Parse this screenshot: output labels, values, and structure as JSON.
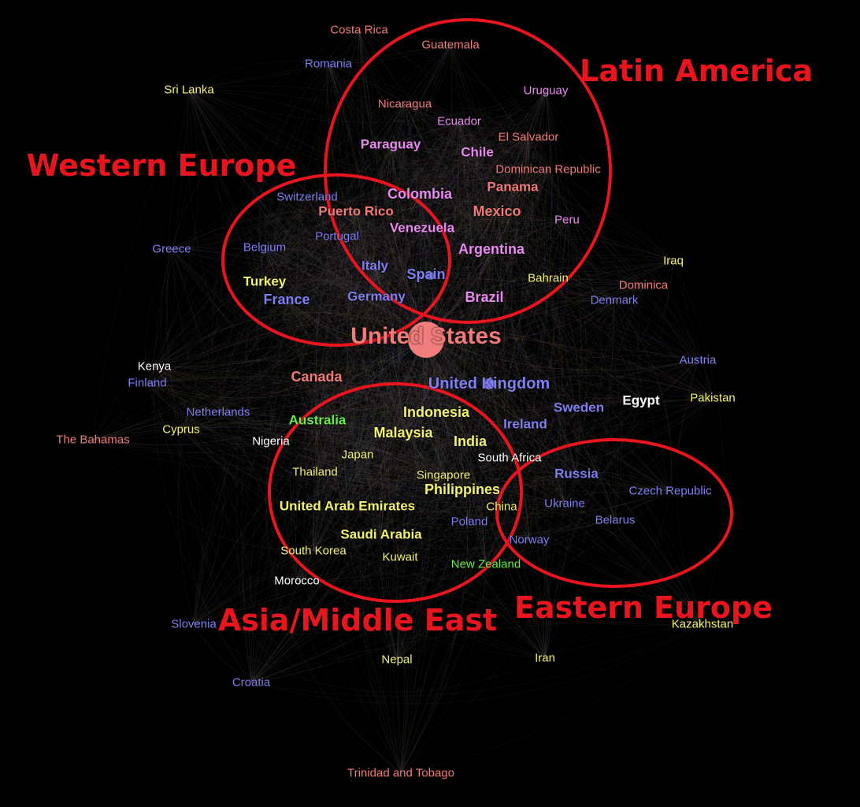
{
  "colors": {
    "background": "#000000",
    "region_outline": "#e8151f",
    "region_text": "#e8151f",
    "hub_dot": "#f27d7d",
    "edge_palette": [
      "#6e6a3a",
      "#5a4d80",
      "#7a4a55",
      "#4d5a80",
      "#6a6a40"
    ],
    "groups": {
      "salmon": "#f17b78",
      "violet": "#e98af0",
      "blue": "#7f7ff2",
      "yellow": "#f3f36e",
      "white": "#ffffff",
      "green": "#66ee44"
    }
  },
  "regions": [
    {
      "name": "latin-america",
      "label": "Latin America"
    },
    {
      "name": "western-europe",
      "label": "Western Europe"
    },
    {
      "name": "asia-middle-east",
      "label": "Asia/Middle East"
    },
    {
      "name": "eastern-europe",
      "label": "Eastern Europe"
    }
  ],
  "countries": [
    {
      "label": "Costa Rica",
      "group": "salmon",
      "weight": 1
    },
    {
      "label": "Guatemala",
      "group": "salmon",
      "weight": 1
    },
    {
      "label": "Romania",
      "group": "blue",
      "weight": 1
    },
    {
      "label": "Sri Lanka",
      "group": "yellow",
      "weight": 1
    },
    {
      "label": "Uruguay",
      "group": "violet",
      "weight": 1
    },
    {
      "label": "Nicaragua",
      "group": "salmon",
      "weight": 1
    },
    {
      "label": "Ecuador",
      "group": "violet",
      "weight": 1
    },
    {
      "label": "El Salvador",
      "group": "salmon",
      "weight": 1
    },
    {
      "label": "Paraguay",
      "group": "violet",
      "weight": 2
    },
    {
      "label": "Chile",
      "group": "violet",
      "weight": 2
    },
    {
      "label": "Dominican Republic",
      "group": "salmon",
      "weight": 1
    },
    {
      "label": "Switzerland",
      "group": "blue",
      "weight": 1
    },
    {
      "label": "Colombia",
      "group": "violet",
      "weight": 3
    },
    {
      "label": "Panama",
      "group": "salmon",
      "weight": 2
    },
    {
      "label": "Puerto Rico",
      "group": "salmon",
      "weight": 2
    },
    {
      "label": "Mexico",
      "group": "salmon",
      "weight": 3
    },
    {
      "label": "Peru",
      "group": "violet",
      "weight": 1
    },
    {
      "label": "Venezuela",
      "group": "violet",
      "weight": 2
    },
    {
      "label": "Portugal",
      "group": "blue",
      "weight": 1
    },
    {
      "label": "Greece",
      "group": "blue",
      "weight": 1
    },
    {
      "label": "Belgium",
      "group": "blue",
      "weight": 1
    },
    {
      "label": "Argentina",
      "group": "violet",
      "weight": 3
    },
    {
      "label": "Iraq",
      "group": "yellow",
      "weight": 1
    },
    {
      "label": "Italy",
      "group": "blue",
      "weight": 2
    },
    {
      "label": "Spain",
      "group": "blue",
      "weight": 3
    },
    {
      "label": "Turkey",
      "group": "yellow",
      "weight": 2
    },
    {
      "label": "Bahrain",
      "group": "yellow",
      "weight": 1
    },
    {
      "label": "Dominica",
      "group": "salmon",
      "weight": 1
    },
    {
      "label": "France",
      "group": "blue",
      "weight": 3
    },
    {
      "label": "Germany",
      "group": "blue",
      "weight": 2
    },
    {
      "label": "Brazil",
      "group": "violet",
      "weight": 3
    },
    {
      "label": "Denmark",
      "group": "blue",
      "weight": 1
    },
    {
      "label": "United States",
      "group": "salmon",
      "weight": 5
    },
    {
      "label": "Austria",
      "group": "blue",
      "weight": 1
    },
    {
      "label": "Kenya",
      "group": "white",
      "weight": 1
    },
    {
      "label": "Canada",
      "group": "salmon",
      "weight": 3
    },
    {
      "label": "United Kingdom",
      "group": "blue",
      "weight": 4
    },
    {
      "label": "Finland",
      "group": "blue",
      "weight": 1
    },
    {
      "label": "Egypt",
      "group": "white",
      "weight": 2
    },
    {
      "label": "Pakistan",
      "group": "yellow",
      "weight": 1
    },
    {
      "label": "Indonesia",
      "group": "yellow",
      "weight": 3
    },
    {
      "label": "Sweden",
      "group": "blue",
      "weight": 2
    },
    {
      "label": "Netherlands",
      "group": "blue",
      "weight": 1
    },
    {
      "label": "Australia",
      "group": "green",
      "weight": 2
    },
    {
      "label": "Ireland",
      "group": "blue",
      "weight": 2
    },
    {
      "label": "Cyprus",
      "group": "yellow",
      "weight": 1
    },
    {
      "label": "Malaysia",
      "group": "yellow",
      "weight": 3
    },
    {
      "label": "India",
      "group": "yellow",
      "weight": 3
    },
    {
      "label": "The Bahamas",
      "group": "salmon",
      "weight": 1
    },
    {
      "label": "Nigeria",
      "group": "white",
      "weight": 1
    },
    {
      "label": "Japan",
      "group": "yellow",
      "weight": 1
    },
    {
      "label": "South Africa",
      "group": "white",
      "weight": 1
    },
    {
      "label": "Thailand",
      "group": "yellow",
      "weight": 1
    },
    {
      "label": "Singapore",
      "group": "yellow",
      "weight": 1
    },
    {
      "label": "Russia",
      "group": "blue",
      "weight": 2
    },
    {
      "label": "Philippines",
      "group": "yellow",
      "weight": 3
    },
    {
      "label": "Czech Republic",
      "group": "blue",
      "weight": 1
    },
    {
      "label": "United Arab Emirates",
      "group": "yellow",
      "weight": 2
    },
    {
      "label": "China",
      "group": "yellow",
      "weight": 1
    },
    {
      "label": "Ukraine",
      "group": "blue",
      "weight": 1
    },
    {
      "label": "Belarus",
      "group": "blue",
      "weight": 1
    },
    {
      "label": "Poland",
      "group": "blue",
      "weight": 1
    },
    {
      "label": "Saudi Arabia",
      "group": "yellow",
      "weight": 2
    },
    {
      "label": "Norway",
      "group": "blue",
      "weight": 1
    },
    {
      "label": "South Korea",
      "group": "yellow",
      "weight": 1
    },
    {
      "label": "Kuwait",
      "group": "yellow",
      "weight": 1
    },
    {
      "label": "New Zealand",
      "group": "green",
      "weight": 1
    },
    {
      "label": "Morocco",
      "group": "white",
      "weight": 1
    },
    {
      "label": "Slovenia",
      "group": "blue",
      "weight": 1
    },
    {
      "label": "Kazakhstan",
      "group": "yellow",
      "weight": 1
    },
    {
      "label": "Nepal",
      "group": "yellow",
      "weight": 1
    },
    {
      "label": "Iran",
      "group": "yellow",
      "weight": 1
    },
    {
      "label": "Croatia",
      "group": "blue",
      "weight": 1
    },
    {
      "label": "Trinidad and Tobago",
      "group": "salmon",
      "weight": 1
    }
  ]
}
